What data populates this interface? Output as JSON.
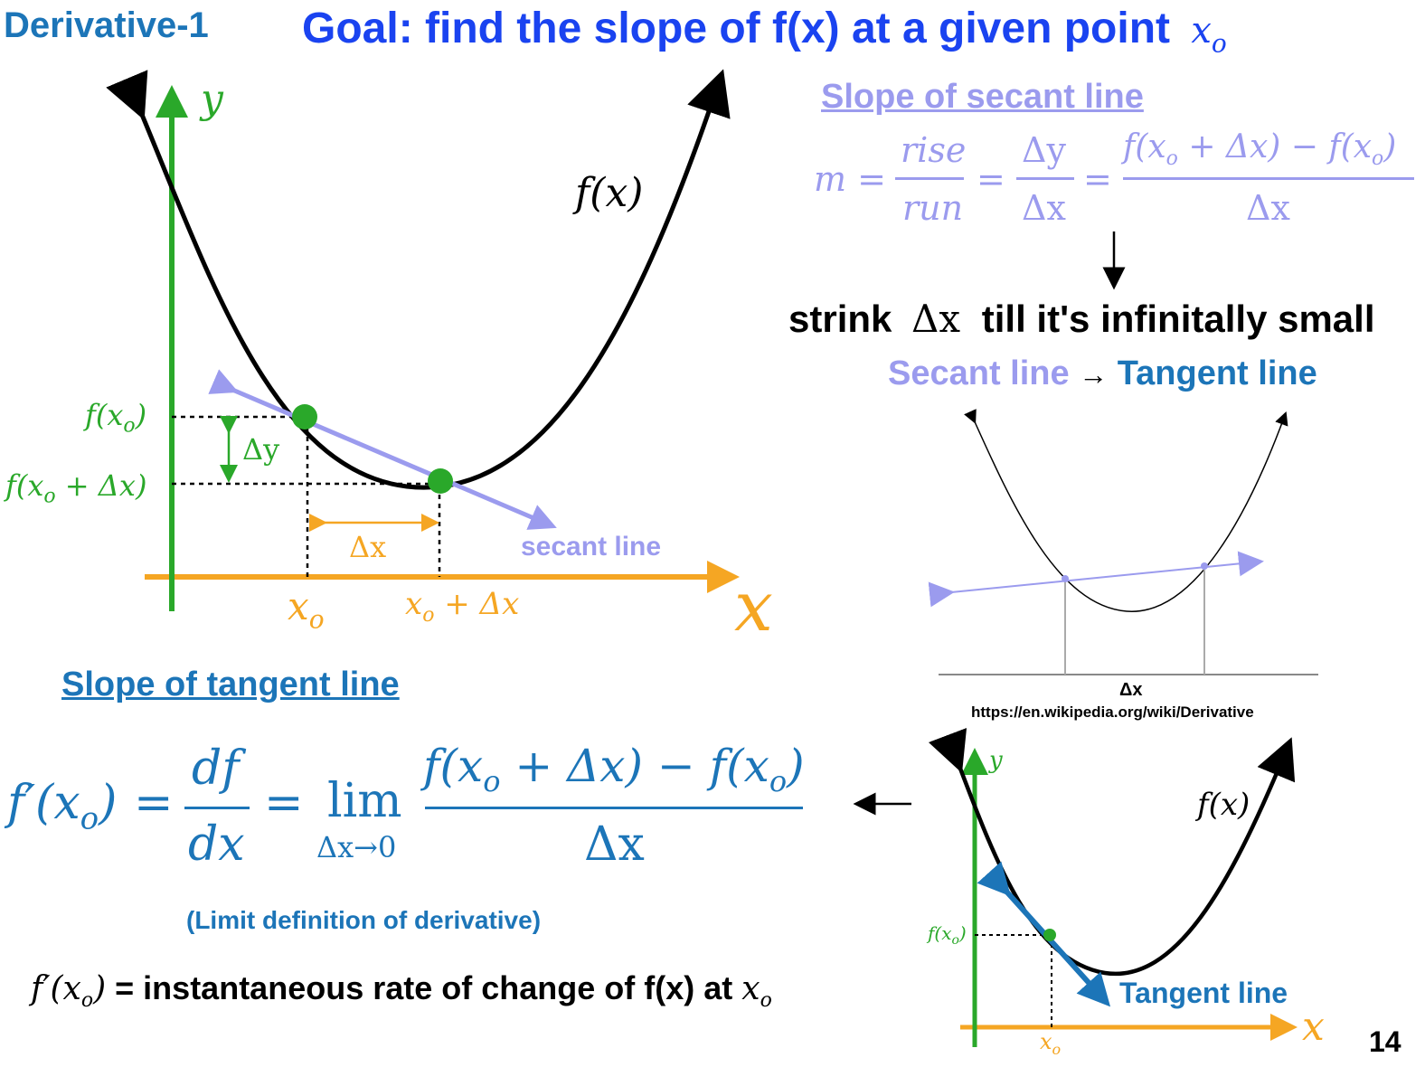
{
  "header": {
    "section": "Derivative-1",
    "goal_prefix": "Goal: find the slope of f(x) at a given point",
    "goal_var": "x",
    "goal_sub": "o"
  },
  "main_graph": {
    "y_axis": "y",
    "x_axis": "x",
    "curve_label": "f(x)",
    "f_xo": "f(x",
    "f_xo_sub": "o",
    "f_xo_close": ")",
    "f_xodx_a": "f(x",
    "f_xodx_sub": "o",
    "f_xodx_b": " + Δx)",
    "dy": "Δy",
    "dx": "Δx",
    "xo": "x",
    "xo_sub": "o",
    "xodx_a": "x",
    "xodx_sub": "o",
    "xodx_b": " + Δx",
    "secant_label": "secant line"
  },
  "secant_section": {
    "title": "Slope of secant line",
    "m": "m =",
    "rise": "rise",
    "run": "run",
    "eq1": "=",
    "dy": "Δy",
    "dx": "Δx",
    "eq2": "=",
    "num_a": "f(x",
    "num_sub1": "o",
    "num_b": " + Δx) − f(x",
    "num_sub2": "o",
    "num_c": ")",
    "den": "Δx",
    "arrow": "↓"
  },
  "shrink": {
    "a": "strink",
    "dx": "Δx",
    "b": "till it's infinitally small"
  },
  "transition": {
    "secant": "Secant line",
    "arrow": "→",
    "tangent": "Tangent line"
  },
  "wiki_graph": {
    "dx": "Δx",
    "source": "https://en.wikipedia.org/wiki/Derivative"
  },
  "tangent_section": {
    "title": "Slope of tangent line",
    "lhs_a": "f′(x",
    "lhs_sub": "o",
    "lhs_b": ")",
    "eq1": "=",
    "df": "df",
    "dxd": "dx",
    "eq2": "=",
    "lim": "lim",
    "lim_sub": "Δx→0",
    "num_a": "f(x",
    "num_sub1": "o",
    "num_b": " + Δx) − f(x",
    "num_sub2": "o",
    "num_c": ")",
    "den": "Δx",
    "caption": "(Limit definition of derivative)",
    "arrow": "←"
  },
  "interpretation": {
    "a": "f′(x",
    "sub": "o",
    "b": ")",
    "text": " = instantaneous rate of change of f(x) at ",
    "var": "x",
    "var_sub": "o"
  },
  "small_graph": {
    "y": "y",
    "x": "x",
    "curve": "f(x)",
    "fxo_a": "f(x",
    "fxo_sub": "o",
    "fxo_b": ")",
    "xo": "x",
    "xo_sub": "o",
    "tangent_label": "Tangent line"
  },
  "page_number": "14",
  "colors": {
    "blue_title": "#1a43f0",
    "teal": "#1c75b8",
    "green": "#2aa82a",
    "orange": "#f5a623",
    "lavender": "#9b9bee",
    "black": "#000000"
  }
}
